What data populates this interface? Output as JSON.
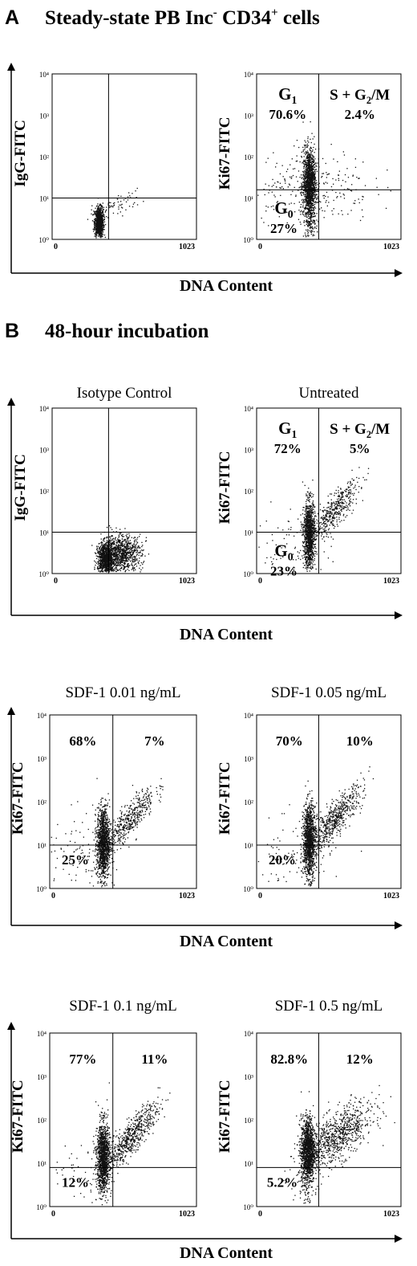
{
  "figure": {
    "panel_a": {
      "letter": "A",
      "title": "Steady-state PB Inc",
      "title_sup1": "-",
      "title_mid": " CD34",
      "title_sup2": "+",
      "title_end": " cells"
    },
    "panel_b": {
      "letter": "B",
      "title": "48-hour incubation"
    },
    "x_axis_label": "DNA Content",
    "y_ticks": [
      "10⁰",
      "10¹",
      "10²",
      "10³",
      "10⁴"
    ]
  },
  "chart_data": [
    {
      "type": "scatter",
      "id": "a_isotype",
      "title": "",
      "xlabel": "DNA Content",
      "ylabel": "IgG-FITC",
      "xlim": [
        0,
        1023
      ],
      "ylim": [
        0,
        4
      ],
      "y_scale": "log",
      "grid": false,
      "x_tick_labels": [
        "0",
        "1023"
      ],
      "quadrant_gate": {
        "x": 400,
        "y": 1.0
      },
      "quadrant_labels": {
        "upper_left": "",
        "upper_right": "",
        "lower_left": ""
      },
      "quadrant_percent": {
        "upper_left": "",
        "upper_right": "",
        "lower_left": ""
      },
      "populations": [
        {
          "x": 330,
          "y": 0.42,
          "sx": 16,
          "sy": 0.18,
          "n": 900
        },
        {
          "x": 450,
          "y": 0.85,
          "sx": 90,
          "sy": 0.12,
          "n": 70,
          "slope": 0.001
        }
      ]
    },
    {
      "type": "scatter",
      "id": "a_ki67",
      "title": "",
      "xlabel": "DNA Content",
      "ylabel": "Ki67-FITC",
      "xlim": [
        0,
        1023
      ],
      "ylim": [
        0,
        4
      ],
      "y_scale": "log",
      "grid": false,
      "x_tick_labels": [
        "0",
        "1023"
      ],
      "quadrant_gate": {
        "x": 440,
        "y": 1.2
      },
      "quadrant_labels": {
        "upper_left": "G",
        "upper_left_sub": "1",
        "upper_right": "S + G",
        "upper_right_sub": "2",
        "upper_right_end": "/M",
        "lower_left": "G",
        "lower_left_sub": "0"
      },
      "quadrant_percent": {
        "upper_left": "70.6%",
        "upper_right": "2.4%",
        "lower_left": "27%"
      },
      "populations": [
        {
          "x": 370,
          "y": 1.35,
          "sx": 22,
          "sy": 0.42,
          "n": 1400
        },
        {
          "x": 380,
          "y": 1.3,
          "sx": 220,
          "sy": 0.45,
          "n": 260
        },
        {
          "x": 380,
          "y": 0.4,
          "sx": 18,
          "sy": 0.35,
          "n": 120
        }
      ]
    },
    {
      "type": "scatter",
      "id": "b_isotype",
      "title": "Isotype Control",
      "xlabel": "DNA Content",
      "ylabel": "IgG-FITC",
      "xlim": [
        0,
        1023
      ],
      "ylim": [
        0,
        4
      ],
      "y_scale": "log",
      "grid": false,
      "x_tick_labels": [
        "0",
        "1023"
      ],
      "quadrant_gate": {
        "x": 400,
        "y": 1.0
      },
      "quadrant_labels": {
        "upper_left": "",
        "upper_right": "",
        "lower_left": ""
      },
      "quadrant_percent": {
        "upper_left": "",
        "upper_right": "",
        "lower_left": ""
      },
      "populations": [
        {
          "x": 380,
          "y": 0.35,
          "sx": 30,
          "sy": 0.2,
          "n": 1000
        },
        {
          "x": 490,
          "y": 0.5,
          "sx": 70,
          "sy": 0.22,
          "n": 900
        }
      ]
    },
    {
      "type": "scatter",
      "id": "b_untreated",
      "title": "Untreated",
      "xlabel": "DNA Content",
      "ylabel": "Ki67-FITC",
      "xlim": [
        0,
        1023
      ],
      "ylim": [
        0,
        4
      ],
      "y_scale": "log",
      "grid": false,
      "x_tick_labels": [
        "0",
        "1023"
      ],
      "quadrant_gate": {
        "x": 440,
        "y": 1.0
      },
      "quadrant_labels": {
        "upper_left": "G",
        "upper_left_sub": "1",
        "upper_right": "S + G",
        "upper_right_sub": "2",
        "upper_right_end": "/M",
        "lower_left": "G",
        "lower_left_sub": "0"
      },
      "quadrant_percent": {
        "upper_left": "72%",
        "upper_right": "5%",
        "lower_left": "23%"
      },
      "populations": [
        {
          "x": 370,
          "y": 0.95,
          "sx": 20,
          "sy": 0.4,
          "n": 1100
        },
        {
          "x": 540,
          "y": 1.5,
          "sx": 90,
          "sy": 0.2,
          "n": 450,
          "slope": 0.0035
        },
        {
          "x": 250,
          "y": 0.6,
          "sx": 130,
          "sy": 0.5,
          "n": 90
        }
      ]
    },
    {
      "type": "scatter",
      "id": "b_sdf_001",
      "title": "SDF-1 0.01 ng/mL",
      "xlabel": "DNA Content",
      "ylabel": "Ki67-FITC",
      "xlim": [
        0,
        1023
      ],
      "ylim": [
        0,
        4
      ],
      "y_scale": "log",
      "grid": false,
      "x_tick_labels": [
        "0",
        "1023"
      ],
      "quadrant_gate": {
        "x": 440,
        "y": 1.0
      },
      "quadrant_labels": {
        "upper_left": "",
        "upper_right": "",
        "lower_left": ""
      },
      "quadrant_percent": {
        "upper_left": "68%",
        "upper_right": "7%",
        "lower_left": "25%"
      },
      "populations": [
        {
          "x": 370,
          "y": 1.05,
          "sx": 22,
          "sy": 0.42,
          "n": 1200
        },
        {
          "x": 540,
          "y": 1.55,
          "sx": 95,
          "sy": 0.2,
          "n": 500,
          "slope": 0.0035
        },
        {
          "x": 240,
          "y": 0.7,
          "sx": 140,
          "sy": 0.5,
          "n": 100
        }
      ]
    },
    {
      "type": "scatter",
      "id": "b_sdf_005",
      "title": "SDF-1 0.05 ng/mL",
      "xlabel": "DNA Content",
      "ylabel": "Ki67-FITC",
      "xlim": [
        0,
        1023
      ],
      "ylim": [
        0,
        4
      ],
      "y_scale": "log",
      "grid": false,
      "x_tick_labels": [
        "0",
        "1023"
      ],
      "quadrant_gate": {
        "x": 440,
        "y": 1.0
      },
      "quadrant_labels": {
        "upper_left": "",
        "upper_right": "",
        "lower_left": ""
      },
      "quadrant_percent": {
        "upper_left": "70%",
        "upper_right": "10%",
        "lower_left": "20%"
      },
      "populations": [
        {
          "x": 370,
          "y": 1.1,
          "sx": 22,
          "sy": 0.42,
          "n": 1200
        },
        {
          "x": 550,
          "y": 1.6,
          "sx": 100,
          "sy": 0.2,
          "n": 600,
          "slope": 0.0035
        },
        {
          "x": 240,
          "y": 0.7,
          "sx": 140,
          "sy": 0.5,
          "n": 90
        }
      ]
    },
    {
      "type": "scatter",
      "id": "b_sdf_01",
      "title": "SDF-1 0.1 ng/mL",
      "xlabel": "DNA Content",
      "ylabel": "Ki67-FITC",
      "xlim": [
        0,
        1023
      ],
      "ylim": [
        0,
        4
      ],
      "y_scale": "log",
      "grid": false,
      "x_tick_labels": [
        "0",
        "1023"
      ],
      "quadrant_gate": {
        "x": 440,
        "y": 0.9
      },
      "quadrant_labels": {
        "upper_left": "",
        "upper_right": "",
        "lower_left": ""
      },
      "quadrant_percent": {
        "upper_left": "77%",
        "upper_right": "11%",
        "lower_left": "12%"
      },
      "populations": [
        {
          "x": 370,
          "y": 1.15,
          "sx": 22,
          "sy": 0.4,
          "n": 1200
        },
        {
          "x": 560,
          "y": 1.6,
          "sx": 100,
          "sy": 0.2,
          "n": 650,
          "slope": 0.0035
        },
        {
          "x": 250,
          "y": 0.6,
          "sx": 130,
          "sy": 0.45,
          "n": 70
        }
      ]
    },
    {
      "type": "scatter",
      "id": "b_sdf_05",
      "title": "SDF-1 0.5 ng/mL",
      "xlabel": "DNA Content",
      "ylabel": "Ki67-FITC",
      "xlim": [
        0,
        1023
      ],
      "ylim": [
        0,
        4
      ],
      "y_scale": "log",
      "grid": false,
      "x_tick_labels": [
        "0",
        "1023"
      ],
      "quadrant_gate": {
        "x": 440,
        "y": 0.9
      },
      "quadrant_labels": {
        "upper_left": "",
        "upper_right": "",
        "lower_left": ""
      },
      "quadrant_percent": {
        "upper_left": "82.8%",
        "upper_right": "12%",
        "lower_left": "5.2%"
      },
      "populations": [
        {
          "x": 360,
          "y": 1.3,
          "sx": 24,
          "sy": 0.38,
          "n": 1300
        },
        {
          "x": 560,
          "y": 1.6,
          "sx": 130,
          "sy": 0.28,
          "n": 900,
          "slope": 0.002
        },
        {
          "x": 360,
          "y": 0.4,
          "sx": 40,
          "sy": 0.35,
          "n": 60
        }
      ]
    }
  ]
}
